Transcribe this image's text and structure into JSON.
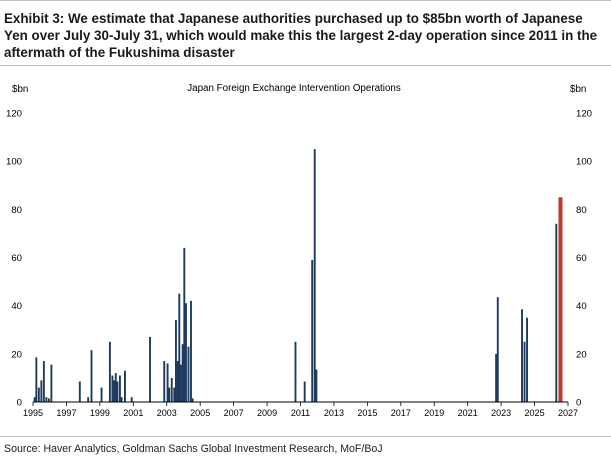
{
  "title": "Exhibit 3: We estimate that Japanese authorities purchased up to $85bn worth of Japanese Yen over July 30-July 31, which would make this the largest 2-day operation since 2011 in the aftermath of the Fukushima disaster",
  "source": "Source: Haver Analytics, Goldman Sachs Global Investment Research, MoF/BoJ",
  "colors": {
    "bar": "#1f3a5f",
    "highlight": "#c0392b"
  },
  "chart_data": {
    "type": "bar",
    "title": "Japan Foreign Exchange Intervention Operations",
    "ylabel_left": "$bn",
    "ylabel_right": "$bn",
    "xlabel": "",
    "ylim": [
      0,
      120
    ],
    "yticks": [
      0,
      20,
      40,
      60,
      80,
      100,
      120
    ],
    "xlim": [
      1995,
      2027
    ],
    "xticks": [
      1995,
      1997,
      1999,
      2001,
      2003,
      2005,
      2007,
      2009,
      2011,
      2013,
      2015,
      2017,
      2019,
      2021,
      2023,
      2025,
      2027
    ],
    "grid": false,
    "x": [
      1995.1,
      1995.2,
      1995.35,
      1995.5,
      1995.65,
      1995.8,
      1995.95,
      1996.1,
      1997.8,
      1998.3,
      1998.5,
      1999.1,
      1999.6,
      1999.75,
      1999.85,
      1999.95,
      2000.05,
      2000.2,
      2000.3,
      2000.5,
      2000.9,
      2002.0,
      2002.85,
      2003.05,
      2003.15,
      2003.3,
      2003.45,
      2003.55,
      2003.65,
      2003.75,
      2003.85,
      2003.95,
      2004.05,
      2004.15,
      2004.3,
      2004.45,
      2004.55,
      2010.7,
      2011.25,
      2011.7,
      2011.85,
      2011.95,
      2022.7,
      2022.8,
      2024.25,
      2024.4,
      2024.55,
      2026.3
    ],
    "values": [
      2,
      18.5,
      6,
      9,
      17,
      2,
      1.5,
      15.5,
      8.5,
      2,
      21.5,
      6,
      25,
      11,
      9,
      12,
      8.5,
      11,
      2,
      13,
      2,
      27,
      17,
      16,
      6,
      10,
      6,
      34,
      17,
      45,
      15.5,
      24,
      64,
      41,
      23,
      42,
      1.5,
      25,
      8.5,
      59,
      105,
      13.5,
      20,
      43.5,
      38.5,
      25,
      35,
      74
    ],
    "highlight": {
      "x": 2026.55,
      "value": 85
    }
  }
}
